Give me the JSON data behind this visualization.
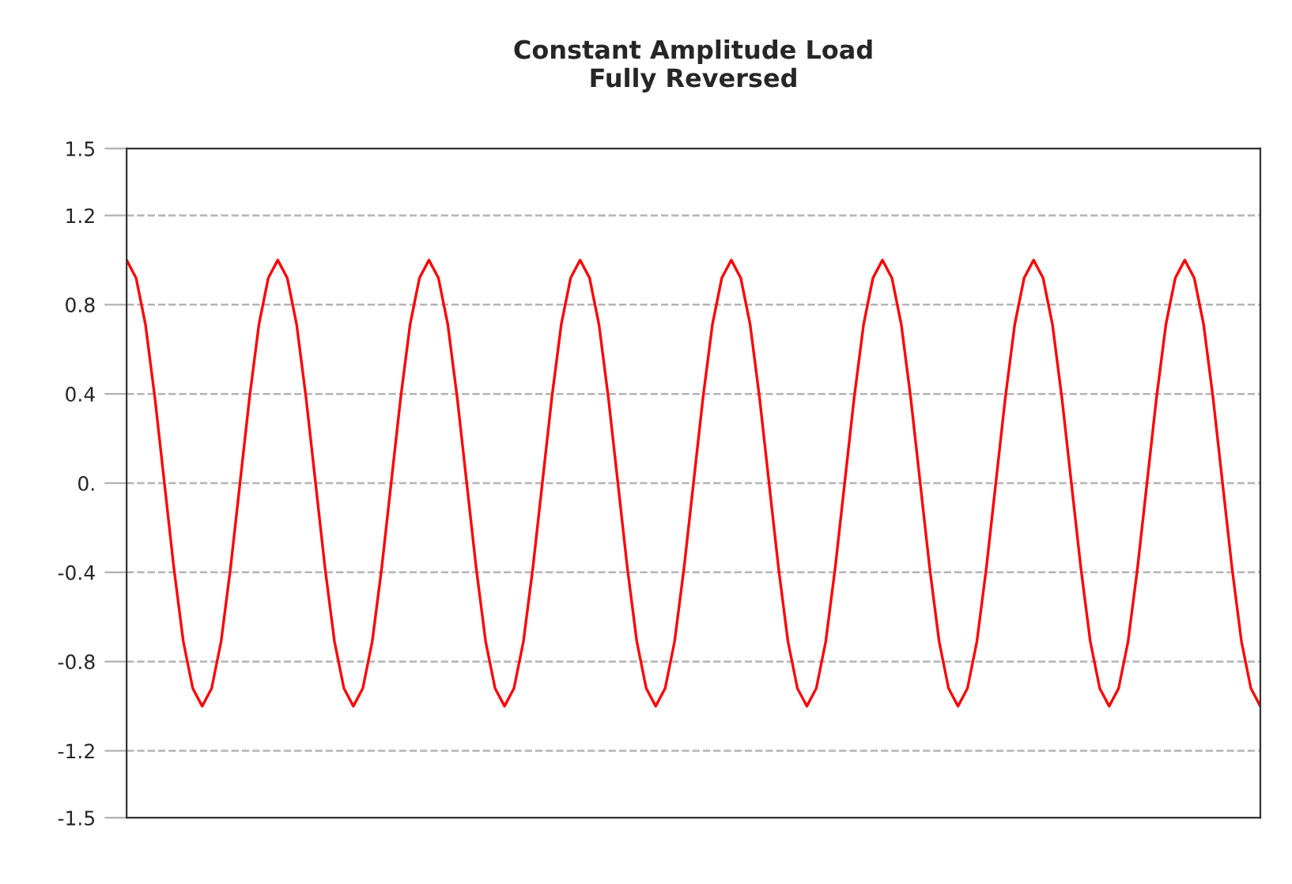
{
  "chart_data": {
    "type": "line",
    "title": "Constant Amplitude Load\nFully Reversed",
    "categories": [
      null,
      null,
      null,
      null,
      null,
      null,
      null,
      null,
      null,
      null,
      null,
      null,
      null,
      null,
      null,
      null,
      null,
      null,
      null,
      null,
      null,
      null,
      null,
      null,
      null,
      null,
      null,
      null,
      null,
      null,
      null,
      null,
      null,
      null,
      null,
      null,
      null,
      null,
      null,
      null,
      null,
      null,
      null,
      null,
      null,
      null,
      null,
      null,
      null,
      null,
      null,
      null,
      null,
      null,
      null,
      null,
      null,
      null,
      null,
      null,
      null,
      null,
      null,
      null,
      null,
      null,
      null,
      null,
      null,
      null,
      null,
      null,
      null,
      null,
      null,
      null,
      null,
      null,
      null,
      null,
      null,
      null,
      null,
      null,
      null,
      null,
      null,
      null,
      null,
      null,
      null,
      null,
      null,
      null,
      null,
      null,
      null,
      null,
      null,
      null,
      null,
      null,
      null,
      null,
      null,
      null,
      null,
      null,
      null,
      null,
      null,
      null,
      null,
      null,
      null,
      null,
      null,
      null,
      null,
      null,
      null
    ],
    "series": [
      {
        "color": "#ff0000",
        "values": [
          1,
          0.92,
          0.71,
          0.38,
          0,
          -0.38,
          -0.71,
          -0.92,
          -1,
          -0.92,
          -0.71,
          -0.38,
          0,
          0.38,
          0.71,
          0.92,
          1,
          0.92,
          0.71,
          0.38,
          0,
          -0.38,
          -0.71,
          -0.92,
          -1,
          -0.92,
          -0.71,
          -0.38,
          0,
          0.38,
          0.71,
          0.92,
          1,
          0.92,
          0.71,
          0.38,
          0,
          -0.38,
          -0.71,
          -0.92,
          -1,
          -0.92,
          -0.71,
          -0.38,
          0,
          0.38,
          0.71,
          0.92,
          1,
          0.92,
          0.71,
          0.38,
          0,
          -0.38,
          -0.71,
          -0.92,
          -1,
          -0.92,
          -0.71,
          -0.38,
          0,
          0.38,
          0.71,
          0.92,
          1,
          0.92,
          0.71,
          0.38,
          0,
          -0.38,
          -0.71,
          -0.92,
          -1,
          -0.92,
          -0.71,
          -0.38,
          0,
          0.38,
          0.71,
          0.92,
          1,
          0.92,
          0.71,
          0.38,
          0,
          -0.38,
          -0.71,
          -0.92,
          -1,
          -0.92,
          -0.71,
          -0.38,
          0,
          0.38,
          0.71,
          0.92,
          1,
          0.92,
          0.71,
          0.38,
          0,
          -0.38,
          -0.71,
          -0.92,
          -1,
          -0.92,
          -0.71,
          -0.38,
          0,
          0.38,
          0.71,
          0.92,
          1,
          0.92,
          0.71,
          0.38,
          0,
          -0.38,
          -0.71,
          -0.92,
          -1
        ]
      }
    ],
    "ylim": [
      -1.5,
      1.5
    ],
    "yticks": [
      1.5,
      1.2,
      0.8,
      0.4,
      {
        "value": 0,
        "label": "0."
      },
      -0.4,
      -0.8,
      -1.2,
      -1.5
    ],
    "grid": "y",
    "tick_labels": "y",
    "marker": "none",
    "line_style": "solid"
  }
}
